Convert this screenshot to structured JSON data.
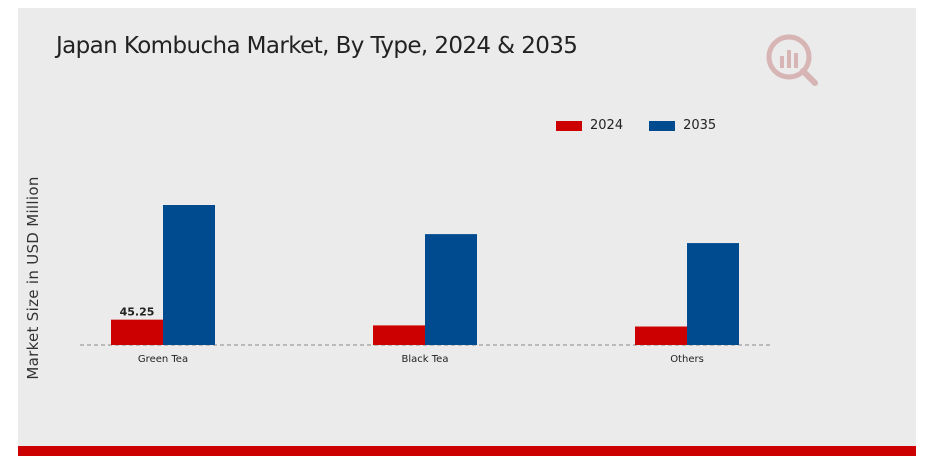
{
  "chart_data": {
    "type": "bar",
    "title": "Japan Kombucha Market, By Type, 2024 & 2035",
    "xlabel": "",
    "ylabel": "Market Size in USD Million",
    "categories": [
      "Green Tea",
      "Black Tea",
      "Others"
    ],
    "series": [
      {
        "name": "2024",
        "color": "#cc0000",
        "values": [
          45.25,
          35.0,
          33.0
        ]
      },
      {
        "name": "2035",
        "color": "#004a8f",
        "values": [
          250.0,
          198.0,
          182.0
        ]
      }
    ],
    "data_labels": [
      {
        "series": 0,
        "index": 0,
        "text": "45.25"
      }
    ],
    "ylim": [
      0,
      300
    ],
    "grid": false,
    "legend_position": "top-right"
  },
  "logo": {
    "icon": "brand-chart-logo-icon"
  }
}
